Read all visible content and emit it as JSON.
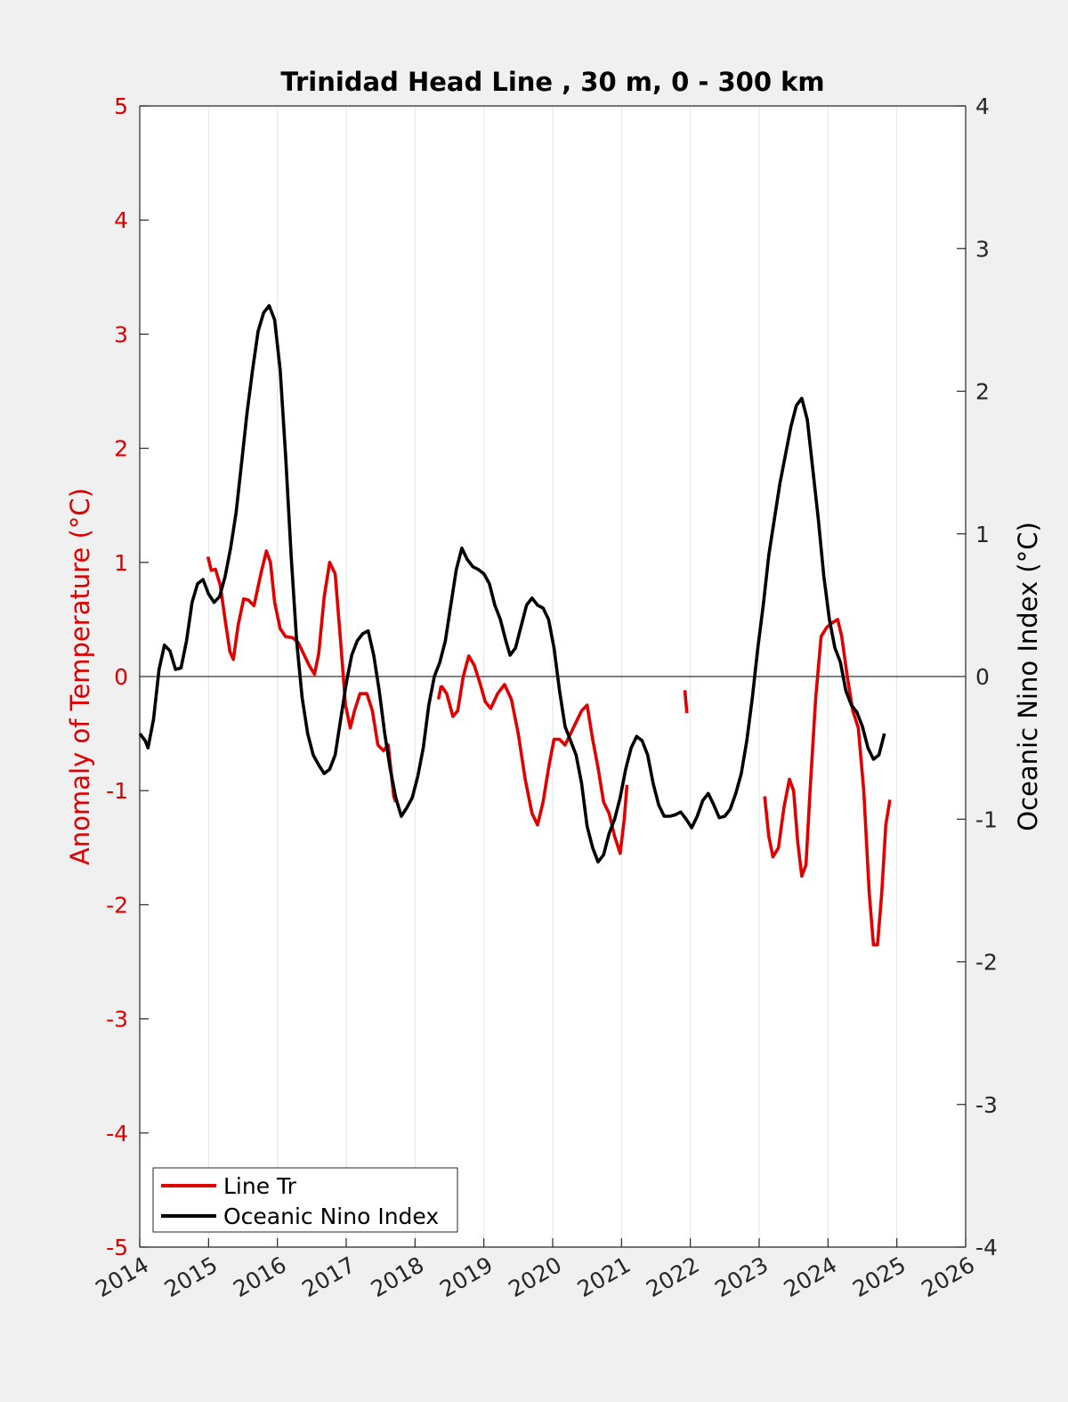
{
  "chart_data": {
    "type": "line",
    "title": "Trinidad Head Line , 30 m, 0 - 300 km",
    "ylabel_left": "Anomaly of Temperature (°C)",
    "ylabel_right": "Oceanic Nino Index (°C)",
    "xlim": [
      2014,
      2026
    ],
    "ylim_left": [
      -5,
      5
    ],
    "ylim_right": [
      -4,
      4
    ],
    "xticks": [
      "2014",
      "2015",
      "2016",
      "2017",
      "2018",
      "2019",
      "2020",
      "2021",
      "2022",
      "2023",
      "2024",
      "2025",
      "2026"
    ],
    "yticks_left": [
      "-5",
      "-4",
      "-3",
      "-2",
      "-1",
      "0",
      "1",
      "2",
      "3",
      "4",
      "5"
    ],
    "yticks_right": [
      "-4",
      "-3",
      "-2",
      "-1",
      "0",
      "1",
      "2",
      "3",
      "4"
    ],
    "grid": "vertical",
    "legend_position": "bottom-left",
    "colors": {
      "left_axis": "#dd0000",
      "line_tr": "#e00000",
      "oni": "#000000"
    },
    "series": [
      {
        "name": "Line Tr",
        "axis": "left",
        "segments": [
          [
            [
              2014.99,
              1.05
            ],
            [
              2015.04,
              0.93
            ],
            [
              2015.1,
              0.94
            ],
            [
              2015.17,
              0.8
            ],
            [
              2015.24,
              0.5
            ],
            [
              2015.31,
              0.22
            ],
            [
              2015.36,
              0.15
            ],
            [
              2015.43,
              0.45
            ],
            [
              2015.51,
              0.68
            ],
            [
              2015.58,
              0.67
            ],
            [
              2015.66,
              0.62
            ],
            [
              2015.76,
              0.9
            ],
            [
              2015.84,
              1.1
            ],
            [
              2015.9,
              1.0
            ],
            [
              2015.96,
              0.65
            ],
            [
              2016.04,
              0.42
            ],
            [
              2016.12,
              0.35
            ],
            [
              2016.22,
              0.34
            ],
            [
              2016.3,
              0.3
            ],
            [
              2016.38,
              0.2
            ],
            [
              2016.46,
              0.1
            ],
            [
              2016.54,
              0.02
            ],
            [
              2016.6,
              0.2
            ],
            [
              2016.68,
              0.7
            ],
            [
              2016.76,
              1.0
            ],
            [
              2016.84,
              0.9
            ],
            [
              2016.92,
              0.3
            ],
            [
              2016.99,
              -0.25
            ],
            [
              2017.06,
              -0.45
            ],
            [
              2017.12,
              -0.3
            ],
            [
              2017.2,
              -0.15
            ],
            [
              2017.3,
              -0.15
            ],
            [
              2017.38,
              -0.3
            ],
            [
              2017.46,
              -0.6
            ],
            [
              2017.54,
              -0.65
            ],
            [
              2017.61,
              -0.6
            ],
            [
              2017.69,
              -1.05
            ],
            [
              2017.72,
              -1.1
            ]
          ],
          [
            [
              2018.34,
              -0.2
            ],
            [
              2018.38,
              -0.08
            ]
          ],
          [
            [
              2018.38,
              -0.08
            ],
            [
              2018.46,
              -0.15
            ],
            [
              2018.55,
              -0.35
            ],
            [
              2018.62,
              -0.3
            ],
            [
              2018.7,
              0.0
            ],
            [
              2018.78,
              0.18
            ],
            [
              2018.86,
              0.1
            ],
            [
              2018.94,
              -0.05
            ],
            [
              2019.02,
              -0.22
            ],
            [
              2019.1,
              -0.28
            ],
            [
              2019.2,
              -0.15
            ],
            [
              2019.3,
              -0.07
            ],
            [
              2019.4,
              -0.2
            ],
            [
              2019.5,
              -0.5
            ],
            [
              2019.6,
              -0.9
            ],
            [
              2019.7,
              -1.2
            ],
            [
              2019.78,
              -1.3
            ],
            [
              2019.86,
              -1.1
            ],
            [
              2019.94,
              -0.8
            ],
            [
              2020.02,
              -0.55
            ],
            [
              2020.1,
              -0.55
            ],
            [
              2020.18,
              -0.6
            ],
            [
              2020.26,
              -0.5
            ],
            [
              2020.34,
              -0.4
            ],
            [
              2020.42,
              -0.3
            ],
            [
              2020.5,
              -0.25
            ],
            [
              2020.58,
              -0.55
            ],
            [
              2020.66,
              -0.8
            ],
            [
              2020.74,
              -1.1
            ],
            [
              2020.82,
              -1.2
            ],
            [
              2020.9,
              -1.4
            ],
            [
              2020.98,
              -1.55
            ],
            [
              2021.04,
              -1.25
            ],
            [
              2021.08,
              -0.95
            ]
          ],
          [
            [
              2021.92,
              -0.12
            ],
            [
              2021.95,
              -0.32
            ]
          ],
          [
            [
              2023.08,
              -1.05
            ],
            [
              2023.14,
              -1.4
            ],
            [
              2023.2,
              -1.58
            ],
            [
              2023.28,
              -1.5
            ],
            [
              2023.36,
              -1.15
            ],
            [
              2023.44,
              -0.9
            ],
            [
              2023.5,
              -1.0
            ],
            [
              2023.56,
              -1.45
            ],
            [
              2023.62,
              -1.75
            ],
            [
              2023.68,
              -1.65
            ],
            [
              2023.74,
              -1.0
            ],
            [
              2023.82,
              -0.2
            ],
            [
              2023.9,
              0.35
            ],
            [
              2023.98,
              0.43
            ],
            [
              2024.06,
              0.47
            ],
            [
              2024.14,
              0.5
            ],
            [
              2024.2,
              0.35
            ],
            [
              2024.28,
              0.0
            ],
            [
              2024.36,
              -0.3
            ],
            [
              2024.44,
              -0.45
            ],
            [
              2024.52,
              -1.0
            ],
            [
              2024.6,
              -1.9
            ],
            [
              2024.66,
              -2.35
            ],
            [
              2024.72,
              -2.35
            ],
            [
              2024.78,
              -1.9
            ],
            [
              2024.84,
              -1.3
            ],
            [
              2024.9,
              -1.08
            ]
          ]
        ]
      },
      {
        "name": "Oceanic Nino Index",
        "axis": "right",
        "points": [
          [
            2014.0,
            -0.4
          ],
          [
            2014.08,
            -0.45
          ],
          [
            2014.12,
            -0.5
          ],
          [
            2014.2,
            -0.3
          ],
          [
            2014.28,
            0.05
          ],
          [
            2014.36,
            0.22
          ],
          [
            2014.44,
            0.18
          ],
          [
            2014.52,
            0.05
          ],
          [
            2014.6,
            0.06
          ],
          [
            2014.68,
            0.25
          ],
          [
            2014.76,
            0.52
          ],
          [
            2014.84,
            0.65
          ],
          [
            2014.92,
            0.68
          ],
          [
            2015.0,
            0.58
          ],
          [
            2015.08,
            0.52
          ],
          [
            2015.16,
            0.56
          ],
          [
            2015.24,
            0.7
          ],
          [
            2015.32,
            0.9
          ],
          [
            2015.4,
            1.15
          ],
          [
            2015.48,
            1.5
          ],
          [
            2015.56,
            1.85
          ],
          [
            2015.64,
            2.15
          ],
          [
            2015.72,
            2.42
          ],
          [
            2015.8,
            2.55
          ],
          [
            2015.88,
            2.6
          ],
          [
            2015.96,
            2.5
          ],
          [
            2016.04,
            2.15
          ],
          [
            2016.12,
            1.55
          ],
          [
            2016.2,
            0.85
          ],
          [
            2016.28,
            0.25
          ],
          [
            2016.36,
            -0.15
          ],
          [
            2016.44,
            -0.4
          ],
          [
            2016.52,
            -0.55
          ],
          [
            2016.6,
            -0.62
          ],
          [
            2016.68,
            -0.68
          ],
          [
            2016.76,
            -0.65
          ],
          [
            2016.84,
            -0.55
          ],
          [
            2016.92,
            -0.3
          ],
          [
            2017.0,
            -0.05
          ],
          [
            2017.08,
            0.15
          ],
          [
            2017.16,
            0.25
          ],
          [
            2017.24,
            0.3
          ],
          [
            2017.32,
            0.32
          ],
          [
            2017.4,
            0.15
          ],
          [
            2017.48,
            -0.1
          ],
          [
            2017.56,
            -0.4
          ],
          [
            2017.64,
            -0.65
          ],
          [
            2017.72,
            -0.85
          ],
          [
            2017.8,
            -0.98
          ],
          [
            2017.88,
            -0.92
          ],
          [
            2017.96,
            -0.85
          ],
          [
            2018.04,
            -0.7
          ],
          [
            2018.12,
            -0.5
          ],
          [
            2018.2,
            -0.2
          ],
          [
            2018.28,
            0.0
          ],
          [
            2018.36,
            0.1
          ],
          [
            2018.44,
            0.25
          ],
          [
            2018.52,
            0.5
          ],
          [
            2018.6,
            0.75
          ],
          [
            2018.68,
            0.9
          ],
          [
            2018.76,
            0.82
          ],
          [
            2018.84,
            0.77
          ],
          [
            2018.92,
            0.75
          ],
          [
            2019.0,
            0.72
          ],
          [
            2019.08,
            0.65
          ],
          [
            2019.16,
            0.5
          ],
          [
            2019.24,
            0.4
          ],
          [
            2019.32,
            0.25
          ],
          [
            2019.38,
            0.15
          ],
          [
            2019.46,
            0.2
          ],
          [
            2019.54,
            0.35
          ],
          [
            2019.62,
            0.5
          ],
          [
            2019.7,
            0.55
          ],
          [
            2019.78,
            0.5
          ],
          [
            2019.86,
            0.48
          ],
          [
            2019.94,
            0.4
          ],
          [
            2020.02,
            0.2
          ],
          [
            2020.1,
            -0.1
          ],
          [
            2020.18,
            -0.35
          ],
          [
            2020.26,
            -0.45
          ],
          [
            2020.34,
            -0.55
          ],
          [
            2020.42,
            -0.75
          ],
          [
            2020.5,
            -1.05
          ],
          [
            2020.58,
            -1.2
          ],
          [
            2020.66,
            -1.3
          ],
          [
            2020.74,
            -1.25
          ],
          [
            2020.82,
            -1.1
          ],
          [
            2020.9,
            -1.0
          ],
          [
            2020.98,
            -0.85
          ],
          [
            2021.06,
            -0.65
          ],
          [
            2021.14,
            -0.5
          ],
          [
            2021.22,
            -0.42
          ],
          [
            2021.3,
            -0.45
          ],
          [
            2021.38,
            -0.55
          ],
          [
            2021.46,
            -0.75
          ],
          [
            2021.54,
            -0.9
          ],
          [
            2021.62,
            -0.98
          ],
          [
            2021.7,
            -0.98
          ],
          [
            2021.78,
            -0.97
          ],
          [
            2021.86,
            -0.95
          ],
          [
            2021.94,
            -1.0
          ],
          [
            2022.02,
            -1.06
          ],
          [
            2022.1,
            -0.98
          ],
          [
            2022.18,
            -0.87
          ],
          [
            2022.26,
            -0.82
          ],
          [
            2022.34,
            -0.9
          ],
          [
            2022.42,
            -0.99
          ],
          [
            2022.5,
            -0.98
          ],
          [
            2022.58,
            -0.93
          ],
          [
            2022.66,
            -0.82
          ],
          [
            2022.74,
            -0.68
          ],
          [
            2022.82,
            -0.45
          ],
          [
            2022.9,
            -0.15
          ],
          [
            2022.98,
            0.2
          ],
          [
            2023.06,
            0.5
          ],
          [
            2023.14,
            0.85
          ],
          [
            2023.22,
            1.1
          ],
          [
            2023.3,
            1.35
          ],
          [
            2023.38,
            1.55
          ],
          [
            2023.46,
            1.75
          ],
          [
            2023.54,
            1.9
          ],
          [
            2023.62,
            1.95
          ],
          [
            2023.7,
            1.8
          ],
          [
            2023.78,
            1.45
          ],
          [
            2023.86,
            1.1
          ],
          [
            2023.94,
            0.7
          ],
          [
            2024.02,
            0.4
          ],
          [
            2024.1,
            0.2
          ],
          [
            2024.18,
            0.1
          ],
          [
            2024.26,
            -0.1
          ],
          [
            2024.34,
            -0.2
          ],
          [
            2024.42,
            -0.25
          ],
          [
            2024.5,
            -0.35
          ],
          [
            2024.58,
            -0.5
          ],
          [
            2024.66,
            -0.58
          ],
          [
            2024.74,
            -0.55
          ],
          [
            2024.82,
            -0.4
          ]
        ]
      }
    ]
  }
}
